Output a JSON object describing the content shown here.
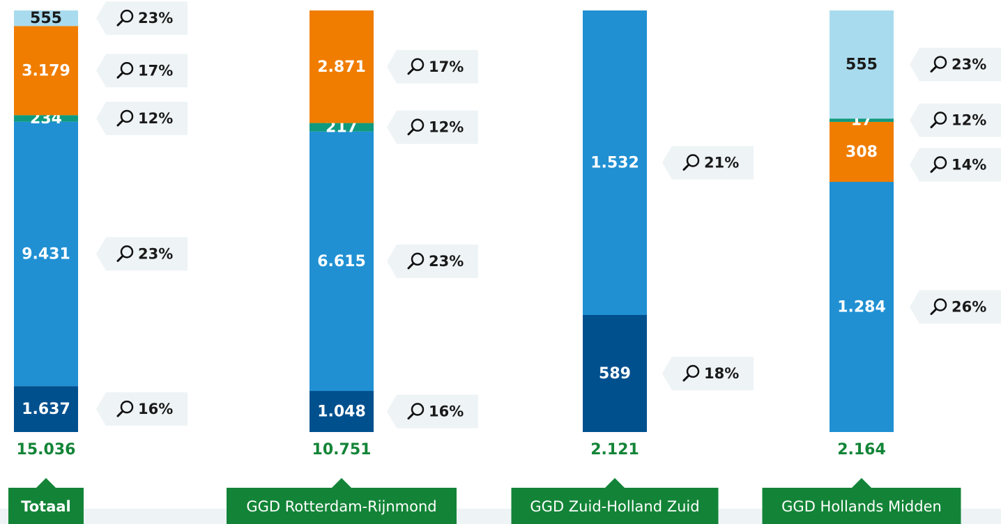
{
  "chart_data": [
    {
      "type": "bar",
      "category": "Totaal",
      "total_label": "15.036",
      "ylim": [
        0,
        15036
      ],
      "values": [
        1637,
        9431,
        234,
        3179,
        555
      ],
      "value_labels": [
        "1.637",
        "9.431",
        "234",
        "3.179",
        "555"
      ],
      "colors": [
        "#01508e",
        "#2090d3",
        "#0f9a7f",
        "#f07d00",
        "#a9dbee"
      ],
      "shares": [
        "16%",
        "23%",
        "12%",
        "17%",
        "23%"
      ]
    },
    {
      "type": "bar",
      "category": "GGD Rotterdam-Rijnmond",
      "total_label": "10.751",
      "ylim": [
        0,
        10751
      ],
      "values": [
        1048,
        6615,
        217,
        2871
      ],
      "value_labels": [
        "1.048",
        "6.615",
        "217",
        "2.871"
      ],
      "colors": [
        "#01508e",
        "#2090d3",
        "#0f9a7f",
        "#f07d00"
      ],
      "shares": [
        "16%",
        "23%",
        "12%",
        "17%"
      ]
    },
    {
      "type": "bar",
      "category": "GGD Zuid-Holland Zuid",
      "total_label": "2.121",
      "ylim": [
        0,
        2121
      ],
      "values": [
        589,
        1532
      ],
      "value_labels": [
        "589",
        "1.532"
      ],
      "colors": [
        "#01508e",
        "#2090d3"
      ],
      "shares": [
        "18%",
        "21%"
      ]
    },
    {
      "type": "bar",
      "category": "GGD Hollands Midden",
      "total_label": "2.164",
      "ylim": [
        0,
        2164
      ],
      "values": [
        1284,
        308,
        17,
        555
      ],
      "value_labels": [
        "1.284",
        "308",
        "17",
        "555"
      ],
      "colors": [
        "#2090d3",
        "#f07d00",
        "#0f9a7f",
        "#a9dbee"
      ],
      "shares": [
        "26%",
        "14%",
        "12%",
        "23%"
      ]
    }
  ]
}
